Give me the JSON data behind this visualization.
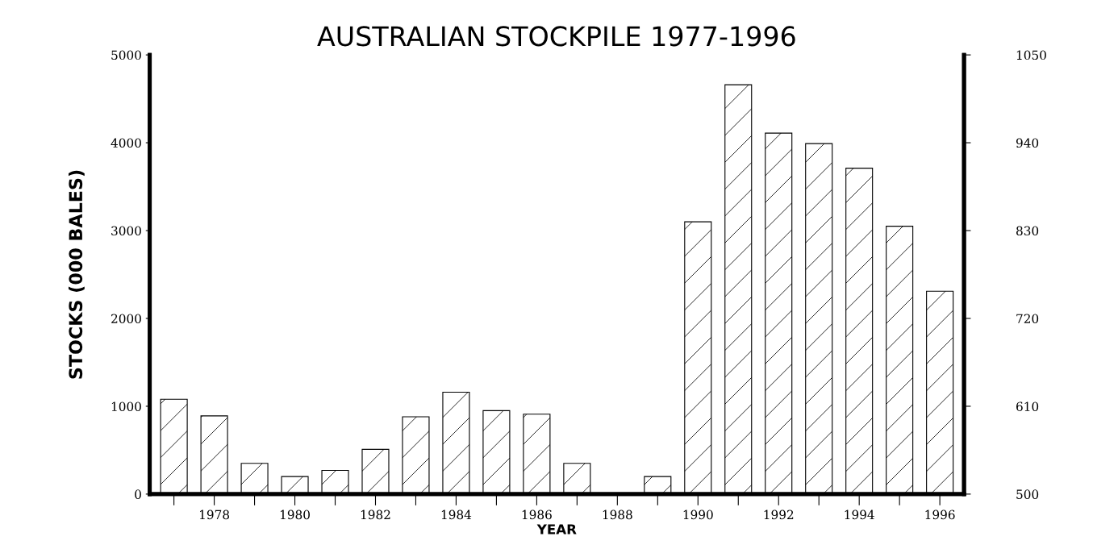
{
  "chart_data": {
    "type": "bar",
    "title": "AUSTRALIAN STOCKPILE 1977-1996",
    "xlabel": "YEAR",
    "ylabel": "STOCKS (000 BALES)",
    "categories": [
      null,
      "1978",
      null,
      "1980",
      null,
      "1982",
      null,
      "1984",
      null,
      "1986",
      null,
      "1988",
      null,
      "1990",
      null,
      "1992",
      null,
      "1994",
      null,
      "1996"
    ],
    "values": [
      1080,
      890,
      350,
      200,
      270,
      510,
      880,
      1160,
      950,
      910,
      350,
      0,
      200,
      3100,
      4660,
      4110,
      3990,
      3710,
      3050,
      2310
    ],
    "color": "#000000",
    "ylim": [
      0,
      5000
    ],
    "yticks": [
      0,
      1000,
      2000,
      3000,
      4000,
      5000
    ],
    "y2lim": [
      500,
      1050
    ],
    "y2ticks": [
      500,
      610,
      720,
      830,
      940,
      1050
    ],
    "grid": false,
    "legend": false
  }
}
